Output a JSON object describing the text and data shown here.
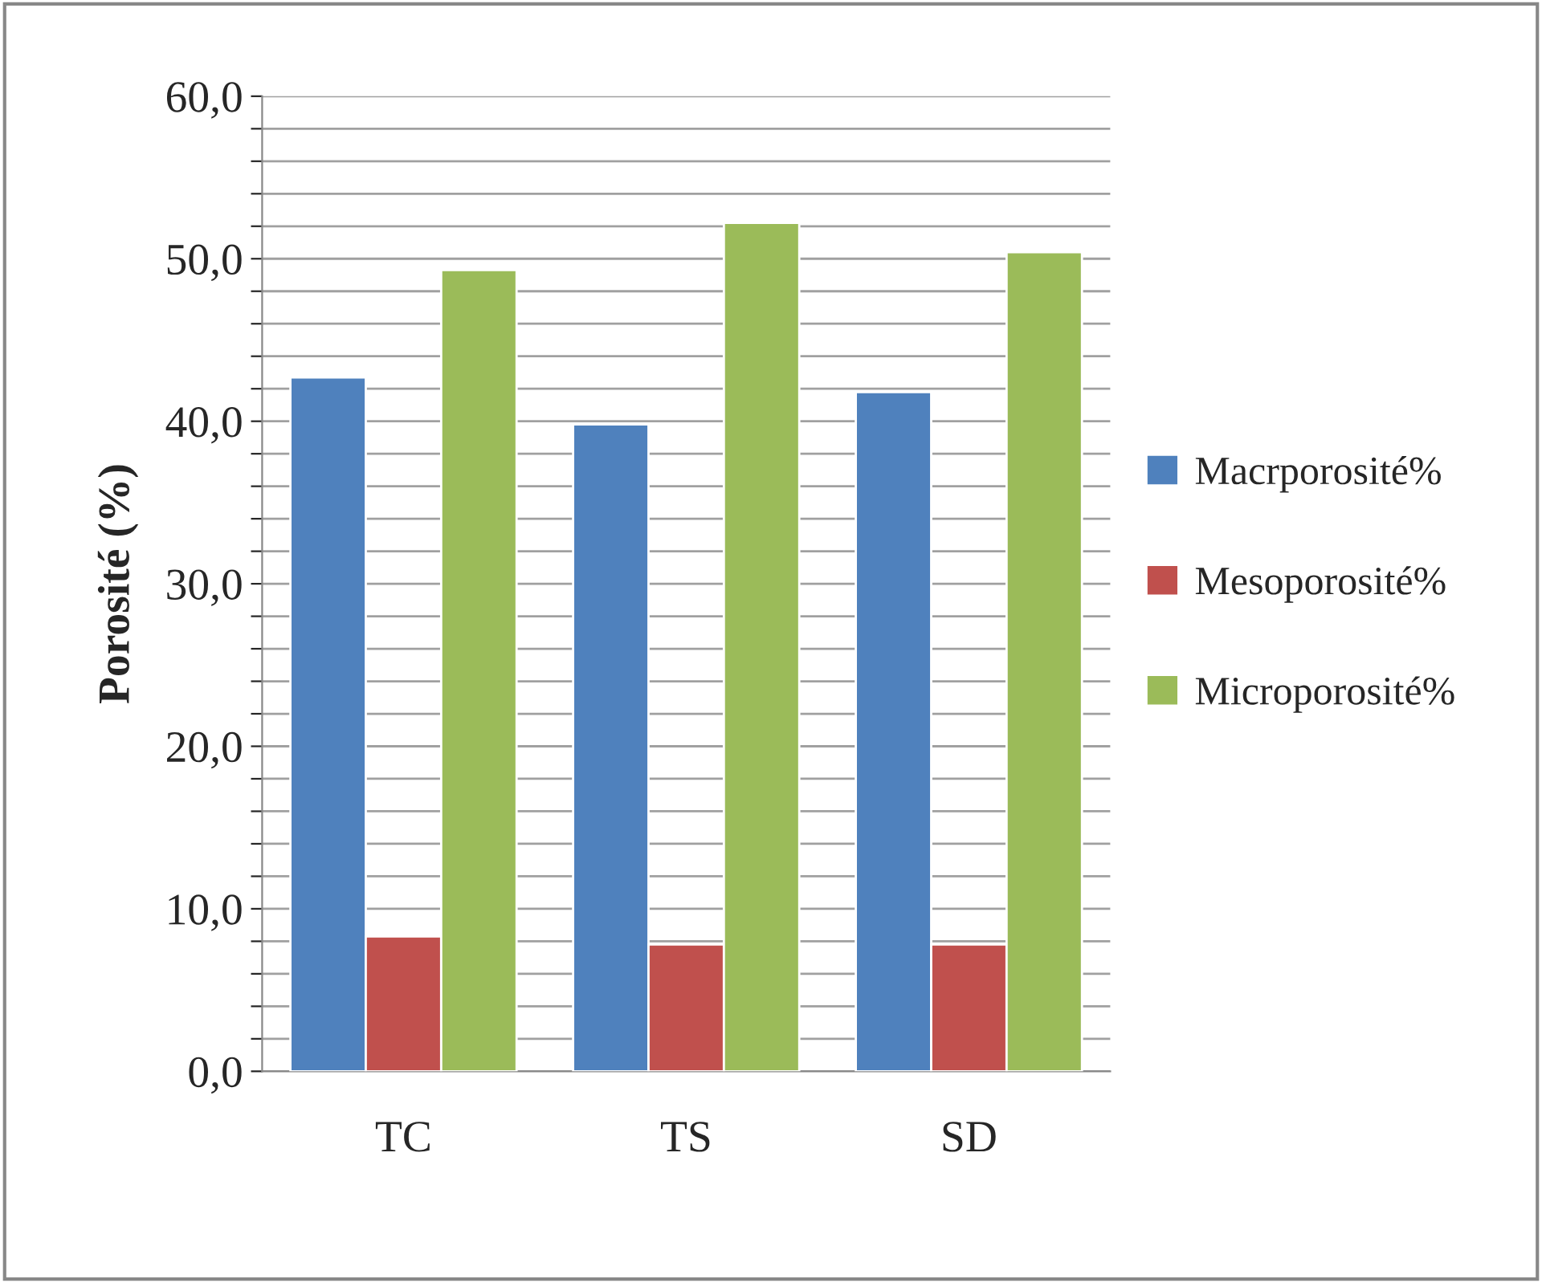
{
  "chart_data": {
    "type": "bar",
    "ylabel": "Porosité (%)",
    "categories": [
      "TC",
      "TS",
      "SD"
    ],
    "series": [
      {
        "name": "Macrporosité%",
        "color": "#4f81bd",
        "values": [
          42.7,
          39.8,
          41.8
        ]
      },
      {
        "name": "Mesoporosité%",
        "color": "#c0504d",
        "values": [
          8.3,
          7.8,
          7.8
        ]
      },
      {
        "name": "Microporosité%",
        "color": "#9bbb59",
        "values": [
          49.3,
          52.2,
          50.4
        ]
      }
    ],
    "ylim": [
      0,
      60
    ],
    "yticks": [
      {
        "value": 0,
        "label": "0,0"
      },
      {
        "value": 2,
        "label": null
      },
      {
        "value": 4,
        "label": null
      },
      {
        "value": 6,
        "label": null
      },
      {
        "value": 8,
        "label": null
      },
      {
        "value": 10,
        "label": "10,0"
      },
      {
        "value": 12,
        "label": null
      },
      {
        "value": 14,
        "label": null
      },
      {
        "value": 16,
        "label": null
      },
      {
        "value": 18,
        "label": null
      },
      {
        "value": 20,
        "label": "20,0"
      },
      {
        "value": 22,
        "label": null
      },
      {
        "value": 24,
        "label": null
      },
      {
        "value": 26,
        "label": null
      },
      {
        "value": 28,
        "label": null
      },
      {
        "value": 30,
        "label": "30,0"
      },
      {
        "value": 32,
        "label": null
      },
      {
        "value": 34,
        "label": null
      },
      {
        "value": 36,
        "label": null
      },
      {
        "value": 38,
        "label": null
      },
      {
        "value": 40,
        "label": "40,0"
      },
      {
        "value": 42,
        "label": null
      },
      {
        "value": 44,
        "label": null
      },
      {
        "value": 46,
        "label": null
      },
      {
        "value": 48,
        "label": null
      },
      {
        "value": 50,
        "label": "50,0"
      },
      {
        "value": 52,
        "label": null
      },
      {
        "value": 54,
        "label": null
      },
      {
        "value": 56,
        "label": null
      },
      {
        "value": 58,
        "label": null
      },
      {
        "value": 60,
        "label": "60,0"
      }
    ],
    "grid": "y",
    "legend": "right"
  }
}
